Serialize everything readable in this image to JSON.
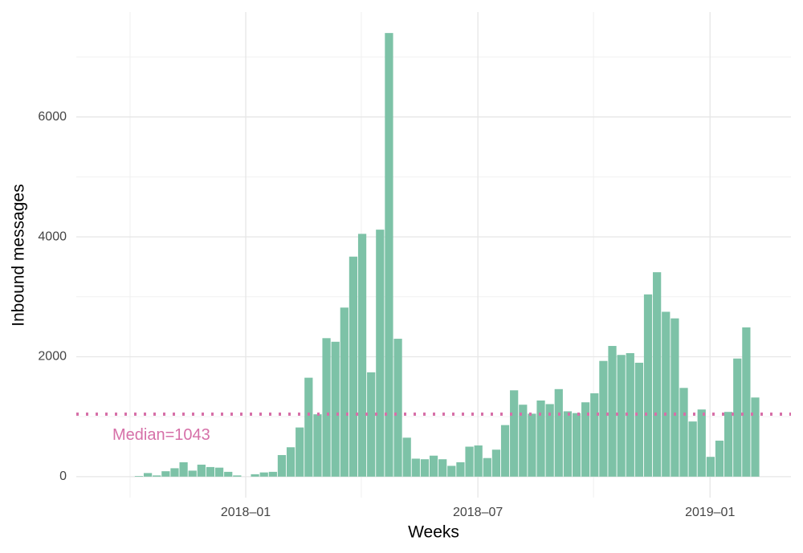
{
  "chart_data": {
    "type": "bar",
    "x_label": "Weeks",
    "y_label": "Inbound messages",
    "categories": [
      null,
      null,
      null,
      null,
      null,
      null,
      null,
      null,
      null,
      null,
      null,
      null,
      null,
      null,
      null,
      null,
      null,
      null,
      null,
      null,
      null,
      null,
      null,
      null,
      null,
      null,
      null,
      null,
      null,
      null,
      null,
      null,
      null,
      null,
      null,
      null,
      null,
      null,
      null,
      null,
      null,
      null,
      null,
      null,
      null,
      null,
      null,
      null,
      null,
      null,
      null,
      null,
      null,
      null,
      null,
      null,
      null,
      null,
      null,
      null,
      null,
      null,
      null,
      null,
      null,
      null,
      null,
      null,
      null,
      null
    ],
    "values": [
      10,
      60,
      20,
      90,
      140,
      240,
      100,
      200,
      160,
      150,
      80,
      20,
      0,
      40,
      70,
      80,
      360,
      490,
      820,
      1650,
      1040,
      2310,
      2250,
      2820,
      3670,
      4050,
      1740,
      4120,
      7400,
      2300,
      650,
      300,
      290,
      350,
      290,
      180,
      240,
      500,
      520,
      310,
      450,
      860,
      1440,
      1200,
      1050,
      1270,
      1210,
      1460,
      1090,
      1060,
      1240,
      1390,
      1930,
      2180,
      2030,
      2060,
      1900,
      3040,
      3410,
      2750,
      2640,
      1480,
      920,
      1120,
      330,
      600,
      1080,
      1970,
      2490,
      1320
    ],
    "color": "#7dc2a7",
    "xlim": [
      -7.01,
      73.0
    ],
    "xticks": [
      {
        "value": 11.96,
        "label": "2018–01"
      },
      {
        "value": 37.95,
        "label": "2018–07"
      },
      {
        "value": 63.94,
        "label": "2019–01"
      }
    ],
    "xminor": [
      -0.99,
      24.9,
      50.9
    ],
    "ylim": [
      -350,
      7750
    ],
    "yticks": [
      0,
      2000,
      4000,
      6000
    ],
    "yminor": [
      1000,
      3000,
      5000,
      7000
    ],
    "grid": true,
    "median": {
      "value": 1043,
      "label": "Median=1043",
      "color": "#d670a8"
    }
  }
}
